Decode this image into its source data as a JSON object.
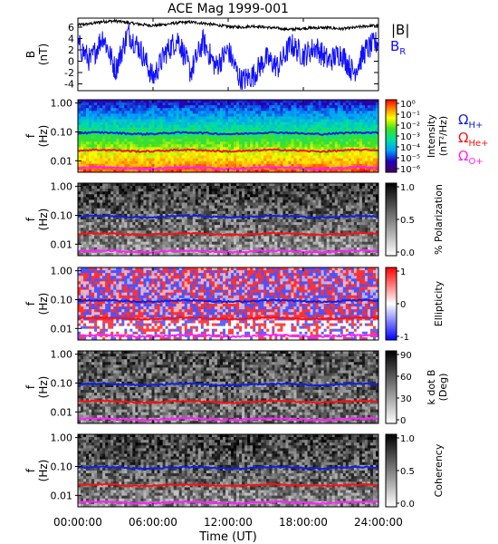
{
  "title": "ACE Mag 1999-001",
  "x_axis": {
    "label": "Time (UT)",
    "ticks": [
      "00:00:00",
      "06:00:00",
      "12:00:00",
      "18:00:00",
      "24:00:00"
    ],
    "range_hours": [
      0,
      24
    ]
  },
  "legend": {
    "B": "|B|",
    "BR": "B",
    "BR_sub": "R",
    "OH": "Ω",
    "OH_sub": "H+",
    "OHe": "Ω",
    "OHe_sub": "He+",
    "OO": "Ω",
    "OO_sub": "O+"
  },
  "colors": {
    "B_total": "#000000",
    "B_R": "#1010ff",
    "omega_H": "#1020e0",
    "omega_He": "#ff1010",
    "omega_O": "#ff20ff"
  },
  "chart_data": [
    {
      "type": "line",
      "panel": "magnetic-field",
      "ylabel": "B",
      "ylabel_unit": "(nT)",
      "yticks": [
        "6",
        "4",
        "2",
        "0",
        "-2",
        "-4"
      ],
      "ylim": [
        -5.2,
        7.6
      ],
      "series": [
        {
          "name": "|B|",
          "x": [
            0,
            1,
            2,
            3,
            4,
            5,
            6,
            7,
            8,
            9,
            10,
            11,
            12,
            13,
            14,
            15,
            16,
            17,
            18,
            19,
            20,
            21,
            22,
            23,
            24
          ],
          "values": [
            6.4,
            6.6,
            7.0,
            7.1,
            6.8,
            6.5,
            6.3,
            6.5,
            6.8,
            6.9,
            6.7,
            6.4,
            6.1,
            6.0,
            6.2,
            6.0,
            5.8,
            5.6,
            5.8,
            5.9,
            5.9,
            5.7,
            5.9,
            6.2,
            6.3
          ]
        },
        {
          "name": "B_R",
          "x": [
            0,
            1,
            2,
            3,
            4,
            5,
            6,
            7,
            8,
            9,
            10,
            11,
            12,
            13,
            14,
            15,
            16,
            17,
            18,
            19,
            20,
            21,
            22,
            23,
            24
          ],
          "values": [
            3.0,
            0.0,
            4.5,
            -1.5,
            5.0,
            2.0,
            -3.0,
            1.5,
            4.0,
            -2.0,
            3.5,
            -1.0,
            2.0,
            -3.5,
            -2.5,
            0.5,
            -1.0,
            3.0,
            1.0,
            2.5,
            0.0,
            1.5,
            -2.0,
            2.0,
            3.5
          ]
        }
      ]
    },
    {
      "type": "heatmap",
      "panel": "intensity",
      "ylabel": "f",
      "ylabel_unit": "(Hz)",
      "yticks": [
        "1.00",
        "0.10",
        "0.01"
      ],
      "ylim": [
        0.004,
        1.3
      ],
      "colorbar": {
        "label": "Intensity",
        "unit": "(nT²/Hz)",
        "ticks": [
          "10⁰",
          "10⁻¹",
          "10⁻²",
          "10⁻³",
          "10⁻⁴",
          "10⁻⁵",
          "10⁻⁶"
        ]
      }
    },
    {
      "type": "heatmap",
      "panel": "polarization",
      "ylabel": "f",
      "ylabel_unit": "(Hz)",
      "yticks": [
        "1.00",
        "0.10",
        "0.01"
      ],
      "ylim": [
        0.004,
        1.3
      ],
      "colorbar": {
        "label": "% Polarization",
        "ticks": [
          "1.0",
          "0.5",
          "0.0"
        ]
      }
    },
    {
      "type": "heatmap",
      "panel": "ellipticity",
      "ylabel": "f",
      "ylabel_unit": "(Hz)",
      "yticks": [
        "1.00",
        "0.10",
        "0.01"
      ],
      "ylim": [
        0.004,
        1.3
      ],
      "colorbar": {
        "label": "Ellipticity",
        "ticks": [
          "1",
          "0",
          "-1"
        ]
      }
    },
    {
      "type": "heatmap",
      "panel": "k-dot-b",
      "ylabel": "f",
      "ylabel_unit": "(Hz)",
      "yticks": [
        "1.00",
        "0.10",
        "0.01"
      ],
      "ylim": [
        0.004,
        1.3
      ],
      "colorbar": {
        "label": "k dot B",
        "unit": "(Deg)",
        "ticks": [
          "90",
          "60",
          "30",
          "0"
        ]
      }
    },
    {
      "type": "heatmap",
      "panel": "coherency",
      "ylabel": "f",
      "ylabel_unit": "(Hz)",
      "yticks": [
        "1.00",
        "0.10",
        "0.01"
      ],
      "ylim": [
        0.004,
        1.3
      ],
      "colorbar": {
        "label": "Coherency",
        "ticks": [
          "1.0",
          "0.5",
          "0.0"
        ]
      }
    }
  ],
  "gyrofrequency_lines_hz": {
    "H+": 0.09,
    "He+": 0.0225,
    "O+": 0.0056
  }
}
